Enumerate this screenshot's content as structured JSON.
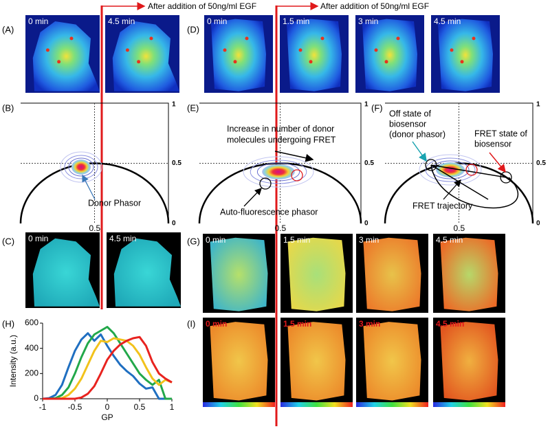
{
  "header": {
    "arrow_text_left": "After addition of 50ng/ml EGF",
    "arrow_text_right": "After addition of 50ng/ml EGF"
  },
  "phasor_axis": {
    "top": 1,
    "mid": 0.5,
    "bottom": 0,
    "x_mid": 0.5
  },
  "panels": {
    "A": {
      "label": "(A)",
      "times": [
        "0 min",
        "4.5 min"
      ]
    },
    "B": {
      "label": "(B)",
      "annotation": "Donor Phasor"
    },
    "C": {
      "label": "(C)",
      "times": [
        "0 min",
        "4.5 min"
      ]
    },
    "D": {
      "label": "(D)",
      "times": [
        "0 min",
        "1.5 min",
        "3 min",
        "4.5 min"
      ]
    },
    "E": {
      "label": "(E)",
      "annotation_top": [
        "Increase in number of donor",
        "molecules undergoing FRET"
      ],
      "annotation_bottom": "Auto-fluorescence phasor"
    },
    "F": {
      "label": "(F)",
      "annotation_off": [
        "Off state of",
        "biosensor",
        "(donor phasor)"
      ],
      "annotation_on": [
        "FRET state of",
        "biosensor"
      ],
      "annotation_trajectory": "FRET trajectory"
    },
    "G": {
      "label": "(G)",
      "times": [
        "0 min",
        "1.5 min",
        "3 min",
        "4.5 min"
      ]
    },
    "H": {
      "label": "(H)"
    },
    "I": {
      "label": "(I)",
      "times": [
        "0 min",
        "1.5 min",
        "3 min",
        "4.5 min"
      ]
    }
  },
  "chart_data": {
    "type": "line",
    "ylabel": "Intensity (a.u.)",
    "xlabel": "GP",
    "x": [
      -1,
      -0.9,
      -0.8,
      -0.7,
      -0.6,
      -0.5,
      -0.4,
      -0.3,
      -0.2,
      -0.1,
      0,
      0.1,
      0.2,
      0.3,
      0.4,
      0.5,
      0.6,
      0.7,
      0.8,
      0.9,
      1
    ],
    "series": [
      {
        "color": "#1f6fc1",
        "values": [
          0,
          5,
          30,
          110,
          250,
          380,
          470,
          520,
          460,
          510,
          420,
          340,
          270,
          220,
          180,
          120,
          80,
          90,
          0,
          0,
          0
        ]
      },
      {
        "color": "#22a84a",
        "values": [
          0,
          0,
          5,
          30,
          90,
          200,
          330,
          440,
          510,
          540,
          570,
          520,
          440,
          360,
          280,
          200,
          150,
          110,
          150,
          0,
          0
        ]
      },
      {
        "color": "#f2c21b",
        "values": [
          0,
          0,
          0,
          5,
          30,
          80,
          160,
          270,
          380,
          460,
          450,
          480,
          470,
          460,
          420,
          350,
          250,
          160,
          110,
          150,
          130
        ]
      },
      {
        "color": "#e8231f",
        "values": [
          0,
          0,
          0,
          0,
          0,
          0,
          10,
          40,
          100,
          200,
          310,
          380,
          430,
          460,
          480,
          490,
          420,
          290,
          200,
          160,
          130
        ]
      }
    ],
    "xlim": [
      -1,
      1
    ],
    "ylim": [
      0,
      600
    ],
    "xticks": [
      -1,
      -0.5,
      0,
      0.5,
      1
    ],
    "yticks": [
      0,
      200,
      400,
      600
    ]
  }
}
